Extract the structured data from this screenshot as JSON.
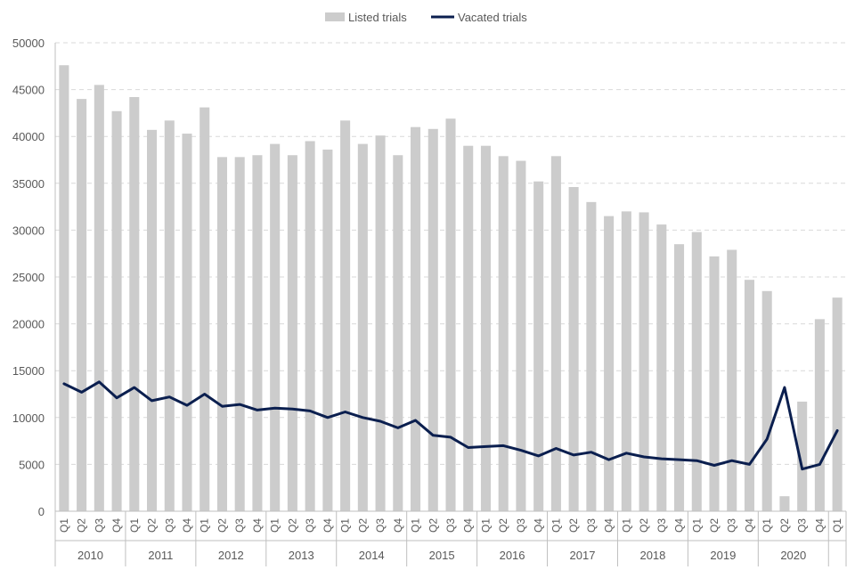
{
  "chart_data": {
    "type": "bar",
    "title": "",
    "xlabel": "",
    "ylabel": "",
    "ylim": [
      0,
      50000
    ],
    "yticks": [
      0,
      5000,
      10000,
      15000,
      20000,
      25000,
      30000,
      35000,
      40000,
      45000,
      50000
    ],
    "grid": "horizontal-dashed",
    "legend": "top-center",
    "colors": {
      "listed": "#cccccc",
      "vacated": "#0b1f4f",
      "axis": "#bfbfbf",
      "grid": "#d9d9d9"
    },
    "quarters": [
      "Q1",
      "Q2",
      "Q3",
      "Q4",
      "Q1",
      "Q2",
      "Q3",
      "Q4",
      "Q1",
      "Q2",
      "Q3",
      "Q4",
      "Q1",
      "Q2",
      "Q3",
      "Q4",
      "Q1",
      "Q2",
      "Q3",
      "Q4",
      "Q1",
      "Q2",
      "Q3",
      "Q4",
      "Q1",
      "Q2",
      "Q3",
      "Q4",
      "Q1",
      "Q2",
      "Q3",
      "Q4",
      "Q1",
      "Q2",
      "Q3",
      "Q4",
      "Q1",
      "Q2",
      "Q3",
      "Q4",
      "Q1",
      "Q2",
      "Q3",
      "Q4",
      "Q1"
    ],
    "years": [
      {
        "label": "2010",
        "count": 4
      },
      {
        "label": "2011",
        "count": 4
      },
      {
        "label": "2012",
        "count": 4
      },
      {
        "label": "2013",
        "count": 4
      },
      {
        "label": "2014",
        "count": 4
      },
      {
        "label": "2015",
        "count": 4
      },
      {
        "label": "2016",
        "count": 4
      },
      {
        "label": "2017",
        "count": 4
      },
      {
        "label": "2018",
        "count": 4
      },
      {
        "label": "2019",
        "count": 4
      },
      {
        "label": "2020",
        "count": 4
      },
      {
        "label": "",
        "count": 1
      }
    ],
    "series": [
      {
        "name": "Listed trials",
        "type": "bar",
        "values": [
          47600,
          44000,
          45500,
          42700,
          44200,
          40700,
          41700,
          40300,
          43100,
          37800,
          37800,
          38000,
          39200,
          38000,
          39500,
          38600,
          41700,
          39200,
          40100,
          38000,
          41000,
          40800,
          41900,
          39000,
          39000,
          37900,
          37400,
          35200,
          37900,
          34600,
          33000,
          31500,
          32000,
          31900,
          30600,
          28500,
          29800,
          27200,
          27900,
          24700,
          23500,
          1600,
          11700,
          20500,
          22800
        ]
      },
      {
        "name": "Vacated trials",
        "type": "line",
        "values": [
          13600,
          12700,
          13800,
          12100,
          13200,
          11800,
          12200,
          11300,
          12500,
          11200,
          11400,
          10800,
          11000,
          10900,
          10700,
          10000,
          10600,
          10000,
          9600,
          8900,
          9700,
          8100,
          7900,
          6800,
          6900,
          7000,
          6500,
          5900,
          6700,
          6000,
          6300,
          5500,
          6200,
          5800,
          5600,
          5500,
          5400,
          4900,
          5400,
          5000,
          7700,
          13200,
          4500,
          5000,
          8600
        ]
      }
    ]
  }
}
